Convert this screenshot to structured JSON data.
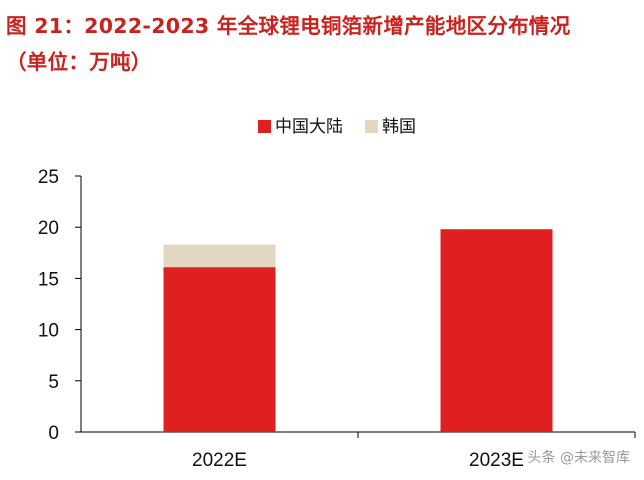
{
  "title": {
    "line1": "图 21：2022-2023 年全球锂电铜箔新增产能地区分布情况",
    "line2": "（单位：万吨）"
  },
  "watermark": "头条 @未来智库",
  "chart_data": {
    "type": "bar",
    "stacked": true,
    "categories": [
      "2022E",
      "2023E"
    ],
    "series": [
      {
        "name": "中国大陆",
        "values": [
          16.1,
          19.8
        ],
        "color": "#e02020"
      },
      {
        "name": "韩国",
        "values": [
          2.2,
          0
        ],
        "color": "#e3d7c2"
      }
    ],
    "ylim": [
      0,
      25
    ],
    "yticks": [
      0,
      5,
      10,
      15,
      20,
      25
    ],
    "legend_position": "top-center",
    "grid": false
  }
}
